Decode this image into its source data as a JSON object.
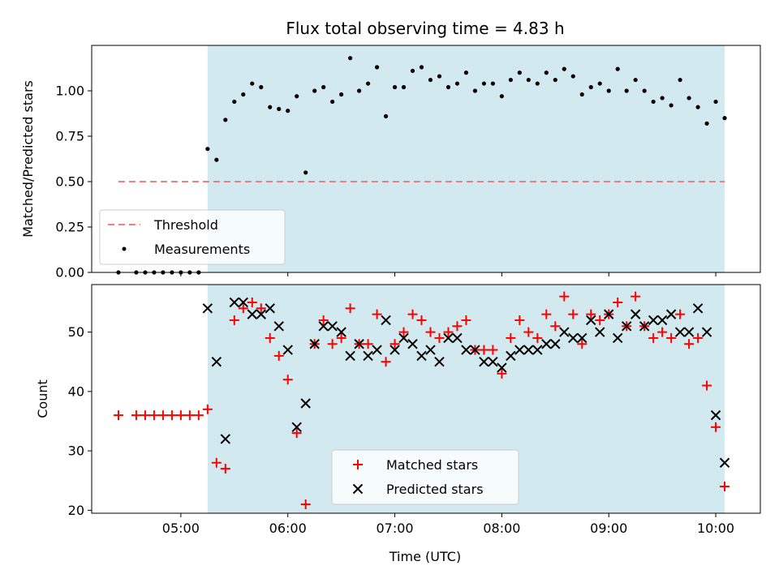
{
  "chart_data": [
    {
      "type": "scatter",
      "title": "Flux total observing time = 4.83 h",
      "ylabel": "Matched/Predicted stars",
      "xlabel": "",
      "ylim": [
        0,
        1.25
      ],
      "yticks": [
        "0.00",
        "0.25",
        "0.50",
        "0.75",
        "1.00"
      ],
      "observing_window": {
        "start": "05:15",
        "end": "10:05",
        "color": "#d3e9f0"
      },
      "threshold": {
        "name": "Threshold",
        "value": 0.5,
        "start": "04:25",
        "end": "10:05",
        "color": "#f08080"
      },
      "legend": {
        "placement": "lower-left",
        "entries": [
          "Threshold",
          "Measurements"
        ]
      },
      "series": [
        {
          "name": "Measurements",
          "color": "#000000",
          "marker": "dot",
          "x": [
            "04:25",
            "04:35",
            "04:40",
            "04:45",
            "04:50",
            "04:55",
            "05:00",
            "05:05",
            "05:10",
            "05:15",
            "05:20",
            "05:25",
            "05:30",
            "05:35",
            "05:40",
            "05:45",
            "05:50",
            "05:55",
            "06:00",
            "06:05",
            "06:10",
            "06:15",
            "06:20",
            "06:25",
            "06:30",
            "06:35",
            "06:40",
            "06:45",
            "06:50",
            "06:55",
            "07:00",
            "07:05",
            "07:10",
            "07:15",
            "07:20",
            "07:25",
            "07:30",
            "07:35",
            "07:40",
            "07:45",
            "07:50",
            "07:55",
            "08:00",
            "08:05",
            "08:10",
            "08:15",
            "08:20",
            "08:25",
            "08:30",
            "08:35",
            "08:40",
            "08:45",
            "08:50",
            "08:55",
            "09:00",
            "09:05",
            "09:10",
            "09:15",
            "09:20",
            "09:25",
            "09:30",
            "09:35",
            "09:40",
            "09:45",
            "09:50",
            "09:55",
            "10:00",
            "10:05"
          ],
          "y": [
            0.0,
            0.0,
            0.0,
            0.0,
            0.0,
            0.0,
            0.0,
            0.0,
            0.0,
            0.68,
            0.62,
            0.84,
            0.94,
            0.98,
            1.04,
            1.02,
            0.91,
            0.9,
            0.89,
            0.97,
            0.55,
            1.0,
            1.02,
            0.94,
            0.98,
            1.18,
            1.0,
            1.04,
            1.13,
            0.86,
            1.02,
            1.02,
            1.11,
            1.13,
            1.06,
            1.08,
            1.02,
            1.04,
            1.1,
            1.0,
            1.04,
            1.04,
            0.97,
            1.06,
            1.1,
            1.06,
            1.04,
            1.1,
            1.06,
            1.12,
            1.08,
            0.98,
            1.02,
            1.04,
            1.0,
            1.12,
            1.0,
            1.06,
            1.0,
            0.94,
            0.96,
            0.92,
            1.06,
            0.96,
            0.91,
            0.82,
            0.94,
            0.85
          ]
        }
      ]
    },
    {
      "type": "scatter",
      "title": "",
      "ylabel": "Count",
      "xlabel": "Time (UTC)",
      "ylim": [
        19.5,
        58
      ],
      "yticks": [
        "20",
        "30",
        "40",
        "50"
      ],
      "xlim": [
        "04:10",
        "10:25"
      ],
      "xticks": [
        "05:00",
        "06:00",
        "07:00",
        "08:00",
        "09:00",
        "10:00"
      ],
      "observing_window": {
        "start": "05:15",
        "end": "10:05",
        "color": "#d3e9f0"
      },
      "legend": {
        "placement": "lower-center",
        "entries": [
          "Matched stars",
          "Predicted stars"
        ]
      },
      "series": [
        {
          "name": "Matched stars",
          "color": "#ff0000",
          "marker": "plus",
          "x": [
            "04:25",
            "04:35",
            "04:40",
            "04:45",
            "04:50",
            "04:55",
            "05:00",
            "05:05",
            "05:10",
            "05:15",
            "05:20",
            "05:25",
            "05:30",
            "05:35",
            "05:40",
            "05:45",
            "05:50",
            "05:55",
            "06:00",
            "06:05",
            "06:10",
            "06:15",
            "06:20",
            "06:25",
            "06:30",
            "06:35",
            "06:40",
            "06:45",
            "06:50",
            "06:55",
            "07:00",
            "07:05",
            "07:10",
            "07:15",
            "07:20",
            "07:25",
            "07:30",
            "07:35",
            "07:40",
            "07:45",
            "07:50",
            "07:55",
            "08:00",
            "08:05",
            "08:10",
            "08:15",
            "08:20",
            "08:25",
            "08:30",
            "08:35",
            "08:40",
            "08:45",
            "08:50",
            "08:55",
            "09:00",
            "09:05",
            "09:10",
            "09:15",
            "09:20",
            "09:25",
            "09:30",
            "09:35",
            "09:40",
            "09:45",
            "09:50",
            "09:55",
            "10:00",
            "10:05"
          ],
          "y": [
            36,
            36,
            36,
            36,
            36,
            36,
            36,
            36,
            36,
            37,
            28,
            27,
            52,
            54,
            55,
            54,
            49,
            46,
            42,
            33,
            21,
            48,
            52,
            48,
            49,
            54,
            48,
            48,
            53,
            45,
            48,
            50,
            53,
            52,
            50,
            49,
            50,
            51,
            52,
            47,
            47,
            47,
            43,
            49,
            52,
            50,
            49,
            53,
            51,
            56,
            53,
            48,
            53,
            52,
            53,
            55,
            51,
            56,
            51,
            49,
            50,
            49,
            53,
            48,
            49,
            41,
            34,
            24
          ]
        },
        {
          "name": "Predicted stars",
          "color": "#000000",
          "marker": "x",
          "x": [
            "05:15",
            "05:20",
            "05:25",
            "05:30",
            "05:35",
            "05:40",
            "05:45",
            "05:50",
            "05:55",
            "06:00",
            "06:05",
            "06:10",
            "06:15",
            "06:20",
            "06:25",
            "06:30",
            "06:35",
            "06:40",
            "06:45",
            "06:50",
            "06:55",
            "07:00",
            "07:05",
            "07:10",
            "07:15",
            "07:20",
            "07:25",
            "07:30",
            "07:35",
            "07:40",
            "07:45",
            "07:50",
            "07:55",
            "08:00",
            "08:05",
            "08:10",
            "08:15",
            "08:20",
            "08:25",
            "08:30",
            "08:35",
            "08:40",
            "08:45",
            "08:50",
            "08:55",
            "09:00",
            "09:05",
            "09:10",
            "09:15",
            "09:20",
            "09:25",
            "09:30",
            "09:35",
            "09:40",
            "09:45",
            "09:50",
            "09:55",
            "10:00",
            "10:05"
          ],
          "y": [
            54,
            45,
            32,
            55,
            55,
            53,
            53,
            54,
            51,
            47,
            34,
            38,
            48,
            51,
            51,
            50,
            46,
            48,
            46,
            47,
            52,
            47,
            49,
            48,
            46,
            47,
            45,
            49,
            49,
            47,
            47,
            45,
            45,
            44,
            46,
            47,
            47,
            47,
            48,
            48,
            50,
            49,
            49,
            52,
            50,
            53,
            49,
            51,
            53,
            51,
            52,
            52,
            53,
            50,
            50,
            54,
            50,
            36,
            28
          ]
        }
      ]
    }
  ]
}
